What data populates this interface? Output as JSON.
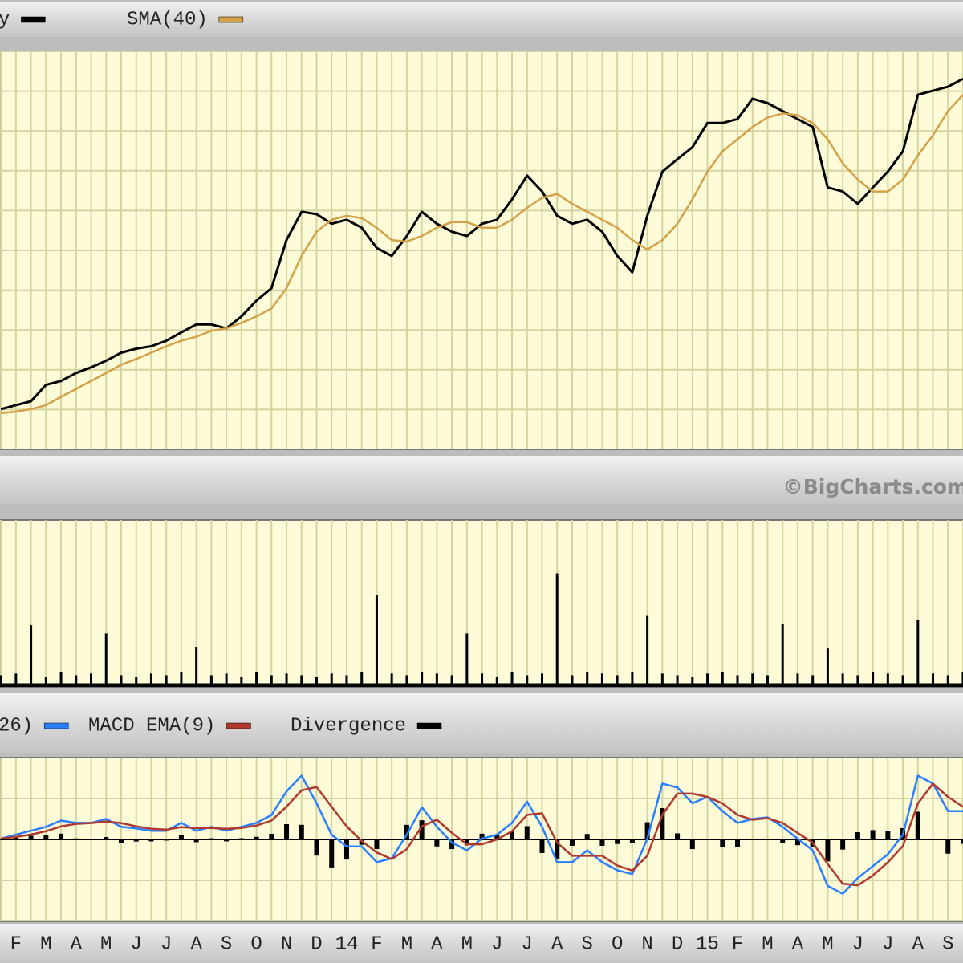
{
  "chart_data": [
    {
      "type": "line",
      "x": [
        0.5,
        1,
        1.5,
        2,
        2.5,
        3,
        3.5,
        4,
        4.5,
        5,
        5.5,
        6,
        6.5,
        7,
        7.5,
        8,
        8.5,
        9,
        9.5,
        10,
        10.5,
        11,
        11.5,
        12,
        12.5,
        13,
        13.5,
        14,
        14.5,
        15,
        15.5,
        16,
        16.5,
        17,
        17.5,
        18,
        18.5,
        19,
        19.5,
        20,
        20.5,
        21,
        21.5,
        22,
        22.5,
        23,
        23.5,
        24,
        24.5,
        25,
        25.5,
        26,
        26.5,
        27,
        27.5,
        28,
        28.5,
        29,
        29.5,
        30,
        30.5,
        31,
        31.5,
        32,
        32.5
      ],
      "xlim": [
        0.47,
        32.5
      ],
      "ylim": [
        0,
        100
      ],
      "yticks": [
        0,
        10,
        20,
        30,
        40,
        50,
        60,
        70,
        80,
        90,
        100
      ],
      "grid": true,
      "series": [
        {
          "name": "y",
          "color": "#000000",
          "values": [
            10.1,
            11.1,
            12.1,
            16.2,
            17.2,
            19.2,
            20.6,
            22.3,
            24.3,
            25.3,
            25.9,
            27.3,
            29.4,
            31.4,
            31.4,
            30.4,
            33.4,
            37.4,
            40.5,
            52.6,
            59.7,
            59.1,
            56.7,
            57.7,
            55.7,
            50.6,
            48.6,
            53.6,
            59.7,
            56.7,
            54.7,
            53.6,
            56.7,
            57.7,
            62.8,
            68.8,
            64.8,
            58.7,
            56.7,
            57.7,
            54.7,
            48.6,
            44.5,
            58.7,
            69.8,
            72.9,
            75.9,
            82.0,
            82.0,
            83.0,
            88.1,
            87.0,
            85.0,
            83.0,
            81.0,
            65.8,
            64.8,
            61.7,
            65.8,
            69.8,
            74.9,
            89.1,
            90.1,
            91.1,
            93.1
          ]
        },
        {
          "name": "SMA(40)",
          "color": "#d4a048",
          "values": [
            9.1,
            9.5,
            10.1,
            11.1,
            13.2,
            15.2,
            17.2,
            19.2,
            21.3,
            22.7,
            24.3,
            25.9,
            27.3,
            28.3,
            29.8,
            30.4,
            31.8,
            33.4,
            35.4,
            40.5,
            48.6,
            54.7,
            57.7,
            58.7,
            58.1,
            55.7,
            52.6,
            52.2,
            53.6,
            55.7,
            57.1,
            57.1,
            55.7,
            55.7,
            57.7,
            60.7,
            63.2,
            64.2,
            61.7,
            59.7,
            57.7,
            55.7,
            52.6,
            50.2,
            52.6,
            56.7,
            62.8,
            69.8,
            74.9,
            77.9,
            81.0,
            83.4,
            84.4,
            84.0,
            82.0,
            77.9,
            71.9,
            67.8,
            64.8,
            64.8,
            67.8,
            73.9,
            78.9,
            85.0,
            89.1
          ]
        }
      ]
    },
    {
      "type": "bar",
      "copyright": "©BigCharts.com",
      "x": [
        0.5,
        1,
        1.5,
        2,
        2.5,
        3,
        3.5,
        4,
        4.5,
        5,
        5.5,
        6,
        6.5,
        7,
        7.5,
        8,
        8.5,
        9,
        9.5,
        10,
        10.5,
        11,
        11.5,
        12,
        12.5,
        13,
        13.5,
        14,
        14.5,
        15,
        15.5,
        16,
        16.5,
        17,
        17.5,
        18,
        18.5,
        19,
        19.5,
        20,
        20.5,
        21,
        21.5,
        22,
        22.5,
        23,
        23.5,
        24,
        24.5,
        25,
        25.5,
        26,
        26.5,
        27,
        27.5,
        28,
        28.5,
        29,
        29.5,
        30,
        30.5,
        31,
        31.5,
        32,
        32.5
      ],
      "xlim": [
        0.47,
        32.5
      ],
      "ylim": [
        0,
        100
      ],
      "color": "#000000",
      "values": [
        7,
        8,
        37,
        6,
        9,
        7,
        8,
        32,
        7,
        6,
        8,
        7,
        9,
        24,
        7,
        8,
        6,
        9,
        7,
        8,
        7,
        6,
        8,
        7,
        9,
        55,
        8,
        7,
        9,
        8,
        7,
        32,
        8,
        6,
        9,
        7,
        8,
        68,
        7,
        9,
        8,
        7,
        9,
        43,
        8,
        7,
        6,
        8,
        9,
        7,
        8,
        7,
        38,
        8,
        7,
        23,
        8,
        7,
        9,
        8,
        7,
        40,
        8,
        7,
        9
      ]
    },
    {
      "type": "line",
      "x": [
        0.5,
        1,
        1.5,
        2,
        2.5,
        3,
        3.5,
        4,
        4.5,
        5,
        5.5,
        6,
        6.5,
        7,
        7.5,
        8,
        8.5,
        9,
        9.5,
        10,
        10.5,
        11,
        11.5,
        12,
        12.5,
        13,
        13.5,
        14,
        14.5,
        15,
        15.5,
        16,
        16.5,
        17,
        17.5,
        18,
        18.5,
        19,
        19.5,
        20,
        20.5,
        21,
        21.5,
        22,
        22.5,
        23,
        23.5,
        24,
        24.5,
        25,
        25.5,
        26,
        26.5,
        27,
        27.5,
        28,
        28.5,
        29,
        29.5,
        30,
        30.5,
        31,
        31.5,
        32,
        32.5
      ],
      "xlim": [
        0.47,
        32.5
      ],
      "ylim": [
        -50,
        50
      ],
      "yticks": [
        -50,
        -25,
        0,
        25,
        50
      ],
      "grid": true,
      "xticks": [
        {
          "value": 0.5,
          "label": null
        },
        {
          "value": 1,
          "label": "F"
        },
        {
          "value": 1.5,
          "label": null
        },
        {
          "value": 2,
          "label": "M"
        },
        {
          "value": 2.5,
          "label": null
        },
        {
          "value": 3,
          "label": "A"
        },
        {
          "value": 3.5,
          "label": null
        },
        {
          "value": 4,
          "label": "M"
        },
        {
          "value": 4.5,
          "label": null
        },
        {
          "value": 5,
          "label": "J"
        },
        {
          "value": 5.5,
          "label": null
        },
        {
          "value": 6,
          "label": "J"
        },
        {
          "value": 6.5,
          "label": null
        },
        {
          "value": 7,
          "label": "A"
        },
        {
          "value": 7.5,
          "label": null
        },
        {
          "value": 8,
          "label": "S"
        },
        {
          "value": 8.5,
          "label": null
        },
        {
          "value": 9,
          "label": "O"
        },
        {
          "value": 9.5,
          "label": null
        },
        {
          "value": 10,
          "label": "N"
        },
        {
          "value": 10.5,
          "label": null
        },
        {
          "value": 11,
          "label": "D"
        },
        {
          "value": 11.5,
          "label": null
        },
        {
          "value": 12,
          "label": "14"
        },
        {
          "value": 12.5,
          "label": null
        },
        {
          "value": 13,
          "label": "F"
        },
        {
          "value": 13.5,
          "label": null
        },
        {
          "value": 14,
          "label": "M"
        },
        {
          "value": 14.5,
          "label": null
        },
        {
          "value": 15,
          "label": "A"
        },
        {
          "value": 15.5,
          "label": null
        },
        {
          "value": 16,
          "label": "M"
        },
        {
          "value": 16.5,
          "label": null
        },
        {
          "value": 17,
          "label": "J"
        },
        {
          "value": 17.5,
          "label": null
        },
        {
          "value": 18,
          "label": "J"
        },
        {
          "value": 18.5,
          "label": null
        },
        {
          "value": 19,
          "label": "A"
        },
        {
          "value": 19.5,
          "label": null
        },
        {
          "value": 20,
          "label": "S"
        },
        {
          "value": 20.5,
          "label": null
        },
        {
          "value": 21,
          "label": "O"
        },
        {
          "value": 21.5,
          "label": null
        },
        {
          "value": 22,
          "label": "N"
        },
        {
          "value": 22.5,
          "label": null
        },
        {
          "value": 23,
          "label": "D"
        },
        {
          "value": 23.5,
          "label": null
        },
        {
          "value": 24,
          "label": "15"
        },
        {
          "value": 24.5,
          "label": null
        },
        {
          "value": 25,
          "label": "F"
        },
        {
          "value": 25.5,
          "label": null
        },
        {
          "value": 26,
          "label": "M"
        },
        {
          "value": 26.5,
          "label": null
        },
        {
          "value": 27,
          "label": "A"
        },
        {
          "value": 27.5,
          "label": null
        },
        {
          "value": 28,
          "label": "M"
        },
        {
          "value": 28.5,
          "label": null
        },
        {
          "value": 29,
          "label": "J"
        },
        {
          "value": 29.5,
          "label": null
        },
        {
          "value": 30,
          "label": "J"
        },
        {
          "value": 30.5,
          "label": null
        },
        {
          "value": 31,
          "label": "A"
        },
        {
          "value": 31.5,
          "label": null
        },
        {
          "value": 32,
          "label": "S"
        },
        {
          "value": 32.5,
          "label": null
        }
      ],
      "series": [
        {
          "name": "26)",
          "color": "#2a7fff",
          "values": [
            0.5,
            2.9,
            5.3,
            7.7,
            11.5,
            10.1,
            10.1,
            12.5,
            7.7,
            6.7,
            5.3,
            5.3,
            10.1,
            5.3,
            7.7,
            5.3,
            7.7,
            10.1,
            14.9,
            29.3,
            38.9,
            22.1,
            2.9,
            -4.3,
            -4.3,
            -13.9,
            -11.5,
            2.9,
            19.7,
            7.7,
            -1.9,
            -6.7,
            0.5,
            2.9,
            10.1,
            23.1,
            7.7,
            -13.9,
            -13.9,
            -6.7,
            -13.9,
            -18.8,
            -21.2,
            0.5,
            34.1,
            31.7,
            22.1,
            26.0,
            17.3,
            10.1,
            12.5,
            13.5,
            7.7,
            0.5,
            -6.7,
            -28.4,
            -33.2,
            -23.6,
            -16.3,
            -9.1,
            2.9,
            38.9,
            34.1,
            17.3,
            17.3
          ]
        },
        {
          "name": "MACD EMA(9)",
          "color": "#b0392e",
          "values": [
            0.5,
            1.5,
            3,
            5,
            8,
            9.5,
            10,
            11,
            10,
            8,
            6.5,
            6,
            7.5,
            7,
            7,
            6.5,
            7,
            8.5,
            11.5,
            20,
            30,
            32,
            20,
            8,
            -1,
            -8,
            -12,
            -6,
            8,
            12,
            4,
            -3,
            -3,
            0,
            5,
            15,
            16,
            -2,
            -10,
            -10,
            -10,
            -16,
            -19,
            -10,
            15,
            28,
            28,
            26,
            22,
            15,
            12,
            13,
            10,
            4,
            -2,
            -15,
            -27,
            -28,
            -22,
            -14,
            -4,
            22,
            34,
            26,
            20
          ]
        },
        {
          "name": "Divergence",
          "color": "#000000",
          "kind": "bar",
          "values": [
            0,
            1.4,
            2.3,
            2.7,
            3.5,
            0.6,
            0.1,
            1.5,
            -2.3,
            -1.3,
            -1.2,
            -0.7,
            2.6,
            -1.7,
            0.7,
            -1.2,
            0.7,
            1.6,
            3.4,
            9.3,
            8.9,
            -9.9,
            -17.1,
            -12.3,
            -3.3,
            -5.9,
            0.5,
            8.9,
            11.7,
            -4.3,
            -5.9,
            -3.7,
            3.5,
            2.9,
            5.1,
            8.1,
            -8.3,
            -11.9,
            -3.9,
            3.3,
            -3.9,
            -2.8,
            -2.2,
            10.5,
            19.1,
            3.7,
            -5.9,
            0,
            -4.7,
            -4.9,
            0.5,
            0.5,
            -2.3,
            -3.5,
            -4.7,
            -13.4,
            -6.2,
            4.4,
            5.7,
            4.9,
            6.9,
            16.9,
            0.1,
            -8.7,
            -2.7
          ]
        }
      ]
    }
  ]
}
